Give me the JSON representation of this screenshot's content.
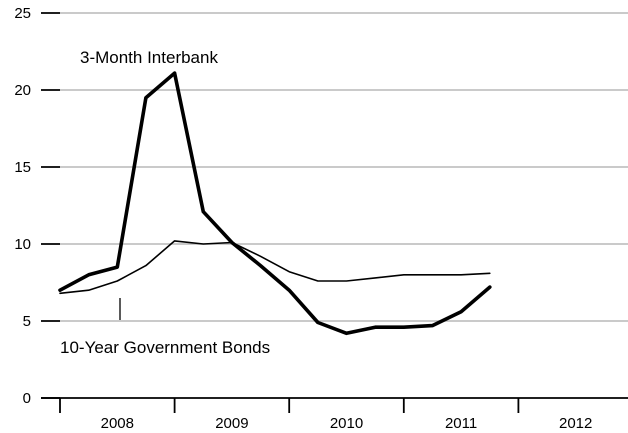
{
  "chart_data": {
    "type": "line",
    "title": "",
    "xlabel": "",
    "ylabel": "",
    "ylim": [
      0,
      25
    ],
    "yticks": [
      0,
      5,
      10,
      15,
      20,
      25
    ],
    "xlim": [
      2008,
      2013
    ],
    "x_tick_labels": [
      "2008",
      "2009",
      "2010",
      "2011",
      "2012"
    ],
    "grid": "horizontal",
    "series": [
      {
        "name": "3-Month Interbank",
        "line": "thick",
        "x": [
          2008.0,
          2008.25,
          2008.5,
          2008.75,
          2009.0,
          2009.25,
          2009.5,
          2009.75,
          2010.0,
          2010.25,
          2010.5,
          2010.75,
          2011.0,
          2011.25,
          2011.5,
          2011.75
        ],
        "values": [
          7.0,
          8.0,
          8.5,
          19.5,
          21.1,
          12.1,
          10.1,
          8.6,
          7.0,
          4.9,
          4.2,
          4.6,
          4.6,
          4.7,
          5.6,
          7.2
        ]
      },
      {
        "name": "10-Year Government Bonds",
        "line": "thin",
        "x": [
          2008.0,
          2008.25,
          2008.5,
          2008.75,
          2009.0,
          2009.25,
          2009.5,
          2009.75,
          2010.0,
          2010.25,
          2010.5,
          2010.75,
          2011.0,
          2011.25,
          2011.5,
          2011.75
        ],
        "values": [
          6.8,
          7.0,
          7.6,
          8.6,
          10.2,
          10.0,
          10.1,
          9.2,
          8.2,
          7.6,
          7.6,
          7.8,
          8.0,
          8.0,
          8.0,
          8.1
        ]
      }
    ]
  }
}
